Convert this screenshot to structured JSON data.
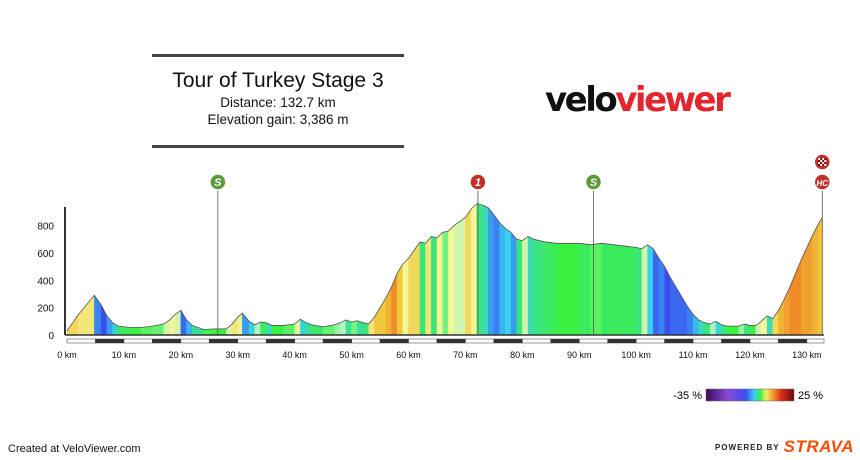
{
  "header": {
    "title": "Tour of Turkey Stage 3",
    "distance_text": "Distance: 132.7 km",
    "elevation_text": "Elevation gain: 3,386 m"
  },
  "logo": {
    "part1": "velo",
    "part2": "viewer"
  },
  "footer": {
    "created": "Created at VeloViewer.com",
    "powered": "POWERED BY",
    "brand": "STRAVA"
  },
  "legend": {
    "min_label": "-35 %",
    "max_label": "25 %",
    "min": -35,
    "max": 25
  },
  "colors": {
    "sprint": "#5a9a3a",
    "climb": "#c0302a",
    "axis": "#333333",
    "brand": "#fc4c02",
    "logo_red": "#e3262d"
  },
  "chart_data": {
    "type": "area",
    "title": "Tour of Turkey Stage 3",
    "xlabel": "",
    "ylabel": "",
    "xlim": [
      0,
      133
    ],
    "ylim": [
      0,
      950
    ],
    "x_ticks": [
      0,
      10,
      20,
      30,
      40,
      50,
      60,
      70,
      80,
      90,
      100,
      110,
      120,
      130
    ],
    "x_tick_labels": [
      "0 km",
      "10 km",
      "20 km",
      "30 km",
      "40 km",
      "50 km",
      "60 km",
      "70 km",
      "80 km",
      "90 km",
      "100 km",
      "110 km",
      "120 km",
      "130 km"
    ],
    "y_ticks": [
      0,
      200,
      400,
      600,
      800
    ],
    "y_tick_labels": [
      "0",
      "200",
      "400",
      "600",
      "800"
    ],
    "units": {
      "x": "km",
      "y": "m"
    },
    "profile": [
      {
        "x": 0,
        "y": 30
      },
      {
        "x": 1,
        "y": 90
      },
      {
        "x": 2,
        "y": 150
      },
      {
        "x": 3,
        "y": 200
      },
      {
        "x": 4,
        "y": 250
      },
      {
        "x": 4.8,
        "y": 290
      },
      {
        "x": 6,
        "y": 220
      },
      {
        "x": 7,
        "y": 140
      },
      {
        "x": 8,
        "y": 90
      },
      {
        "x": 9,
        "y": 65
      },
      {
        "x": 11,
        "y": 55
      },
      {
        "x": 13,
        "y": 55
      },
      {
        "x": 15,
        "y": 65
      },
      {
        "x": 17,
        "y": 80
      },
      {
        "x": 18,
        "y": 110
      },
      {
        "x": 19,
        "y": 150
      },
      {
        "x": 20,
        "y": 180
      },
      {
        "x": 21,
        "y": 110
      },
      {
        "x": 22,
        "y": 70
      },
      {
        "x": 24,
        "y": 40
      },
      {
        "x": 26,
        "y": 45
      },
      {
        "x": 28,
        "y": 45
      },
      {
        "x": 29,
        "y": 80
      },
      {
        "x": 30,
        "y": 130
      },
      {
        "x": 30.8,
        "y": 160
      },
      {
        "x": 32,
        "y": 100
      },
      {
        "x": 33,
        "y": 75
      },
      {
        "x": 34,
        "y": 95
      },
      {
        "x": 35,
        "y": 90
      },
      {
        "x": 36,
        "y": 70
      },
      {
        "x": 38,
        "y": 70
      },
      {
        "x": 40,
        "y": 80
      },
      {
        "x": 41,
        "y": 115
      },
      {
        "x": 42,
        "y": 90
      },
      {
        "x": 43,
        "y": 75
      },
      {
        "x": 45,
        "y": 60
      },
      {
        "x": 47,
        "y": 75
      },
      {
        "x": 48,
        "y": 90
      },
      {
        "x": 49,
        "y": 110
      },
      {
        "x": 50,
        "y": 95
      },
      {
        "x": 51,
        "y": 105
      },
      {
        "x": 52,
        "y": 90
      },
      {
        "x": 53,
        "y": 80
      },
      {
        "x": 54,
        "y": 130
      },
      {
        "x": 55,
        "y": 200
      },
      {
        "x": 56,
        "y": 270
      },
      {
        "x": 57,
        "y": 350
      },
      {
        "x": 58,
        "y": 450
      },
      {
        "x": 59,
        "y": 520
      },
      {
        "x": 60,
        "y": 560
      },
      {
        "x": 61,
        "y": 620
      },
      {
        "x": 62,
        "y": 680
      },
      {
        "x": 63,
        "y": 670
      },
      {
        "x": 64,
        "y": 720
      },
      {
        "x": 65,
        "y": 710
      },
      {
        "x": 66,
        "y": 750
      },
      {
        "x": 67,
        "y": 760
      },
      {
        "x": 68,
        "y": 800
      },
      {
        "x": 69,
        "y": 830
      },
      {
        "x": 70,
        "y": 860
      },
      {
        "x": 71,
        "y": 920
      },
      {
        "x": 72,
        "y": 960
      },
      {
        "x": 73,
        "y": 950
      },
      {
        "x": 74,
        "y": 930
      },
      {
        "x": 75,
        "y": 880
      },
      {
        "x": 76,
        "y": 820
      },
      {
        "x": 77,
        "y": 780
      },
      {
        "x": 78,
        "y": 750
      },
      {
        "x": 79,
        "y": 700
      },
      {
        "x": 80,
        "y": 690
      },
      {
        "x": 81,
        "y": 720
      },
      {
        "x": 82,
        "y": 700
      },
      {
        "x": 84,
        "y": 680
      },
      {
        "x": 86,
        "y": 670
      },
      {
        "x": 88,
        "y": 670
      },
      {
        "x": 90,
        "y": 670
      },
      {
        "x": 92,
        "y": 660
      },
      {
        "x": 94,
        "y": 670
      },
      {
        "x": 96,
        "y": 660
      },
      {
        "x": 98,
        "y": 650
      },
      {
        "x": 100,
        "y": 640
      },
      {
        "x": 101,
        "y": 630
      },
      {
        "x": 102,
        "y": 660
      },
      {
        "x": 103,
        "y": 630
      },
      {
        "x": 104,
        "y": 560
      },
      {
        "x": 105,
        "y": 500
      },
      {
        "x": 106,
        "y": 420
      },
      {
        "x": 107,
        "y": 350
      },
      {
        "x": 108,
        "y": 280
      },
      {
        "x": 109,
        "y": 210
      },
      {
        "x": 110,
        "y": 150
      },
      {
        "x": 111,
        "y": 110
      },
      {
        "x": 112,
        "y": 90
      },
      {
        "x": 113,
        "y": 80
      },
      {
        "x": 114,
        "y": 100
      },
      {
        "x": 115,
        "y": 75
      },
      {
        "x": 116,
        "y": 65
      },
      {
        "x": 118,
        "y": 65
      },
      {
        "x": 119,
        "y": 80
      },
      {
        "x": 120,
        "y": 70
      },
      {
        "x": 121,
        "y": 70
      },
      {
        "x": 122,
        "y": 100
      },
      {
        "x": 123,
        "y": 140
      },
      {
        "x": 124,
        "y": 120
      },
      {
        "x": 125,
        "y": 180
      },
      {
        "x": 126,
        "y": 260
      },
      {
        "x": 127,
        "y": 350
      },
      {
        "x": 128,
        "y": 450
      },
      {
        "x": 129,
        "y": 550
      },
      {
        "x": 130,
        "y": 640
      },
      {
        "x": 131,
        "y": 730
      },
      {
        "x": 132,
        "y": 810
      },
      {
        "x": 132.7,
        "y": 860
      }
    ],
    "markers": [
      {
        "type": "sprint",
        "label": "S",
        "x": 26.5
      },
      {
        "type": "climb",
        "label": "1",
        "x": 72.2
      },
      {
        "type": "sprint",
        "label": "S",
        "x": 92.5
      },
      {
        "type": "climb",
        "label": "HC",
        "x": 132.7,
        "finish": true
      }
    ]
  }
}
